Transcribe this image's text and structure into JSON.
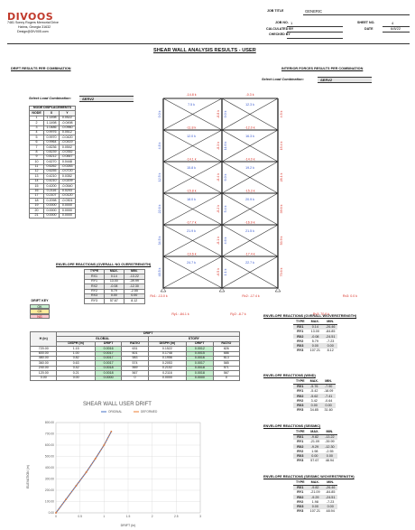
{
  "company": {
    "logo_text": "DIVOOS",
    "address1": "7481 Sonny Rogers Memorial Drive",
    "address2": "Hahns, Georgia 31632",
    "email": "Design@DIV005.com"
  },
  "header_fields": {
    "job_title_label": "JOB TITLE",
    "job_title": "GENERIC",
    "job_no_label": "JOB NO.",
    "job_no": "1",
    "sheet_no_label": "SHEET NO.",
    "sheet_no": "4",
    "calculated_by_label": "CALCULATED BY",
    "date_label": "DATE",
    "date": "6/8/22",
    "checked_by_label": "CHECKED BY"
  },
  "title": "SHEAR WALL ANALYSIS RESULTS - USER",
  "left_section_title": "DRIFT RESULTS PER COMBINATION",
  "right_section_title": "INTERIOR FORCES RESULTS PER COMBINATION",
  "select_label": "Select Load Combination:",
  "selected_combo": "SERV2",
  "node_disp": {
    "title": "NODE DISPLACEMENTS",
    "headers": [
      "NODE",
      "X",
      "Y"
    ],
    "rows": [
      [
        "1",
        "1.1498",
        "0.0522"
      ],
      [
        "2",
        "1.1498",
        "-0.0498"
      ],
      [
        "3",
        "1.0486",
        "-0.0960"
      ],
      [
        "4",
        "0.9976",
        "0.0512"
      ],
      [
        "5",
        "0.9970",
        "-0.0420"
      ],
      [
        "6",
        "0.9964",
        "-0.0419"
      ],
      [
        "7",
        "0.8236",
        "0.0502"
      ],
      [
        "8",
        "0.8239",
        "-0.0352"
      ],
      [
        "9",
        "0.8212",
        "-0.0847"
      ],
      [
        "10",
        "0.6270",
        "0.0448"
      ],
      [
        "11",
        "0.6262",
        "-0.0283"
      ],
      [
        "12",
        "0.6255",
        "-0.0720"
      ],
      [
        "13",
        "0.4210",
        "0.0352"
      ],
      [
        "14",
        "0.4210",
        "-0.0209"
      ],
      [
        "15",
        "0.4200",
        "-0.0540"
      ],
      [
        "16",
        "0.2116",
        "0.0203"
      ],
      [
        "17",
        "0.2107",
        "-0.0120"
      ],
      [
        "18",
        "0.2098",
        "-0.0301"
      ],
      [
        "19",
        "0.0000",
        "0.0000"
      ],
      [
        "20",
        "0.0000",
        "0.0000"
      ],
      [
        "21",
        "0.0000",
        "0.0000"
      ]
    ]
  },
  "env_overall": {
    "title": "ENVELOPE REACTIONS (OVERALL NO OVERSTRENGTH)",
    "headers": [
      "TYPE",
      "MAX.",
      "MIN."
    ],
    "rows": [
      [
        "RX1",
        "0.14",
        "-13.22"
      ],
      [
        "RY1",
        "13.00",
        "-39.99"
      ],
      [
        "RX2",
        "-0.08",
        "-12.30"
      ],
      [
        "RY2",
        "5.79",
        "-2.55"
      ],
      [
        "RX3",
        "0.00",
        "0.00"
      ],
      [
        "RY3",
        "57.67",
        "8.12"
      ]
    ]
  },
  "drift_key": {
    "title": "DRIFT KEY",
    "items": [
      "OK",
      "CK",
      "NG"
    ]
  },
  "drift_table": {
    "title": "DRIFT",
    "global_label": "GLOBAL",
    "story_label": "STORY",
    "h_label": "H (in)",
    "headers": [
      "DISPH (in)",
      "DRIFT",
      "RATIO",
      "DISPH (in)",
      "DRIFT",
      "RATIO"
    ],
    "rows": [
      [
        "720.00",
        "1.15",
        "0.0016",
        "631",
        "0.1522",
        "0.0012",
        "826"
      ],
      [
        "600.00",
        "1.00",
        "0.0017",
        "601",
        "0.1748",
        "0.0015",
        "686"
      ],
      [
        "480.00",
        "0.82",
        "0.0017",
        "583",
        "0.1956",
        "0.0016",
        "613"
      ],
      [
        "360.00",
        "0.63",
        "0.0017",
        "574",
        "0.2053",
        "0.0017",
        "585"
      ],
      [
        "240.00",
        "0.42",
        "0.0018",
        "569",
        "0.2102",
        "0.0018",
        "571"
      ],
      [
        "120.00",
        "0.21",
        "0.0018",
        "567",
        "0.2116",
        "0.0018",
        "567"
      ],
      [
        "0.00",
        "0.00",
        "0.0000",
        "0",
        "0.0000",
        "0.0000",
        "0"
      ]
    ]
  },
  "chart_data": {
    "type": "line",
    "title": "SHEAR WALL USER DRIFT",
    "xlabel": "DRIFT (in)",
    "ylabel": "ELEVATION (in)",
    "xlim": [
      0,
      3
    ],
    "ylim": [
      0,
      800
    ],
    "xticks": [
      "0",
      "0.5",
      "1",
      "1.5",
      "2",
      "2.5",
      "3"
    ],
    "yticks": [
      "0.00",
      "100.00",
      "200.00",
      "300.00",
      "400.00",
      "500.00",
      "600.00",
      "700.00",
      "800.00"
    ],
    "legend_position": "top",
    "grid": true,
    "series": [
      {
        "name": "ORIGINAL",
        "color": "#4472c4",
        "x": [
          0,
          0.21,
          0.42,
          0.63,
          0.82,
          1.0,
          1.15
        ],
        "y": [
          0,
          120,
          240,
          360,
          480,
          600,
          720
        ]
      },
      {
        "name": "DEFORMED",
        "color": "#ed7d31",
        "x": [
          0,
          0.21,
          0.42,
          0.63,
          0.82,
          1.0,
          1.15
        ],
        "y": [
          0,
          120,
          240,
          360,
          480,
          600,
          720
        ]
      }
    ]
  },
  "diagram": {
    "top_forces": [
      "-14.8 k",
      "-0.3 k"
    ],
    "rows": [
      {
        "diag1": "7.5 k",
        "col_l": "0.0 k",
        "col_m1": "-8.8 k",
        "col_m2": "0.0 k",
        "diag2": "12.3 k",
        "col_r": "4.5 k",
        "beam_l": "-11.8 k",
        "beam_r": "-12.0 k"
      },
      {
        "diag1": "12.0 k",
        "col_l": "4.8 k",
        "col_m1": "-8.3 k",
        "col_m2": "11.6 k",
        "diag2": "16.3 k",
        "col_r": "15.4 k",
        "beam_l": "-14.1 k",
        "beam_r": "-14.0 k"
      },
      {
        "diag1": "15.8 k",
        "col_l": "12.5 k",
        "col_m1": "-8.4 k",
        "col_m2": "6.0 k",
        "diag2": "19.2 k",
        "col_r": "28.1 k",
        "beam_l": "-15.8 k",
        "beam_r": "-15.3 k"
      },
      {
        "diag1": "18.0 k",
        "col_l": "22.6 k",
        "col_m1": "-8.2 k",
        "col_m2": "5.4 k",
        "diag2": "20.9 k",
        "col_r": "39.6 k",
        "beam_l": "-17.7 k",
        "beam_r": "-16.9 k"
      },
      {
        "diag1": "21.9 k",
        "col_l": "34.5 k",
        "col_m1": "-8.1 k",
        "col_m2": "4.6 k",
        "diag2": "21.5 k",
        "col_r": "53.9 k",
        "beam_l": "-19.6 k",
        "beam_r": "-17.4 k"
      },
      {
        "diag1": "24.7 k",
        "col_l": "48.5 k",
        "col_m1": "-6.5 k",
        "col_m2": "1.1 k",
        "diag2": "22.7 k",
        "col_r": "70.6 k",
        "beam_l": "",
        "beam_r": ""
      }
    ],
    "reactions_x": [
      "Rx1: -13.0 k",
      "Rx2: -17.4 k",
      "Rx3: 0.0 k"
    ],
    "reactions_y": [
      "Ry1: -84.1 k",
      "Ry2: -8.7 k",
      "Ry3: 70.6 k"
    ]
  },
  "right_tables": [
    {
      "title": "ENVELOPE REACTIONS (OVERALL W/OVERSTRENGTH)",
      "headers": [
        "TYPE",
        "MAX.",
        "MIN."
      ],
      "rows": [
        [
          "RX1",
          "0.14",
          "-26.46"
        ],
        [
          "RY1",
          "13.00",
          "-84.85"
        ],
        [
          "RX2",
          "-0.08",
          "-24.51"
        ],
        [
          "RY2",
          "5.79",
          "-7.23"
        ],
        [
          "RX3",
          "0.00",
          "0.00"
        ],
        [
          "RY3",
          "107.21",
          "8.12"
        ]
      ]
    },
    {
      "title": "ENVELOPE REACTIONS (WIND)",
      "headers": [
        "TYPE",
        "MAX.",
        "MIN."
      ],
      "rows": [
        [
          "RX1",
          "-5.76",
          "-7.90"
        ],
        [
          "RY1",
          "-5.42",
          "-18.09"
        ],
        [
          "RX2",
          "-5.62",
          "-7.41"
        ],
        [
          "RY2",
          "3.42",
          "-0.64"
        ],
        [
          "RX3",
          "0.00",
          "0.00"
        ],
        [
          "RY3",
          "34.85",
          "31.60"
        ]
      ]
    },
    {
      "title": "ENVELOPE REACTIONS (SEISMIC)",
      "headers": [
        "TYPE",
        "MAX.",
        "MIN."
      ],
      "rows": [
        [
          "RX1",
          "-9.82",
          "-13.22"
        ],
        [
          "RY1",
          "-21.09",
          "-39.99"
        ],
        [
          "RX2",
          "-9.29",
          "-12.30"
        ],
        [
          "RY2",
          "1.98",
          "-2.55"
        ],
        [
          "RX3",
          "0.00",
          "0.00"
        ],
        [
          "RY3",
          "57.67",
          "48.94"
        ]
      ]
    },
    {
      "title": "ENVELOPE REACTIONS (SEISMIC W/OVERSTRENGTH)",
      "headers": [
        "TYPE",
        "MAX.",
        "MIN."
      ],
      "rows": [
        [
          "RX1",
          "-9.82",
          "-26.46"
        ],
        [
          "RY1",
          "-21.09",
          "-84.85"
        ],
        [
          "RX2",
          "-9.29",
          "-24.51"
        ],
        [
          "RY2",
          "1.98",
          "-7.23"
        ],
        [
          "RX3",
          "0.00",
          "0.00"
        ],
        [
          "RY3",
          "107.21",
          "48.94"
        ]
      ]
    }
  ]
}
